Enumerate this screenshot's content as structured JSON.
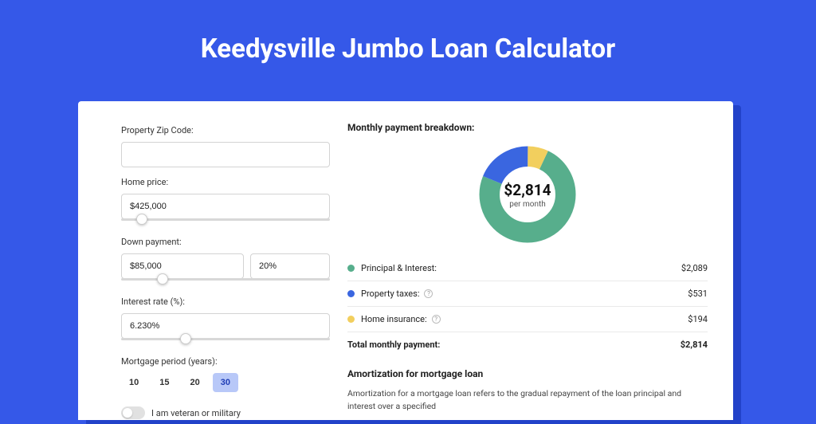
{
  "colors": {
    "page_bg": "#3558e8",
    "card_bg": "#ffffff",
    "shadow_bg": "#2242c9",
    "title_color": "#ffffff",
    "text": "#222222",
    "label": "#333333",
    "input_border": "#d3d3d3",
    "slider_track": "#d8d8d8",
    "period_active_bg": "#b8c8f8",
    "period_active_fg": "#1f3db5",
    "legend_border": "#eaeaea"
  },
  "title": "Keedysville Jumbo Loan Calculator",
  "form": {
    "zip_label": "Property Zip Code:",
    "zip_value": "",
    "home_price_label": "Home price:",
    "home_price_value": "$425,000",
    "home_price_slider_pct": 10,
    "down_payment_label": "Down payment:",
    "down_payment_value": "$85,000",
    "down_payment_pct_value": "20%",
    "down_payment_slider_pct": 20,
    "interest_label": "Interest rate (%):",
    "interest_value": "6.230%",
    "interest_slider_pct": 31,
    "period_label": "Mortgage period (years):",
    "periods": [
      "10",
      "15",
      "20",
      "30"
    ],
    "period_selected": "30",
    "veteran_label": "I am veteran or military",
    "veteran_on": false
  },
  "breakdown": {
    "title": "Monthly payment breakdown:",
    "donut": {
      "total_label": "$2,814",
      "sub_label": "per month",
      "slices": [
        {
          "name": "principal-interest",
          "value": 2089,
          "color": "#57ae8c"
        },
        {
          "name": "property-taxes",
          "value": 531,
          "color": "#3a66e0"
        },
        {
          "name": "home-insurance",
          "value": 194,
          "color": "#f2cf5e"
        }
      ]
    },
    "rows": [
      {
        "dot": "#57ae8c",
        "label": "Principal & Interest:",
        "info": false,
        "value": "$2,089"
      },
      {
        "dot": "#3a66e0",
        "label": "Property taxes:",
        "info": true,
        "value": "$531"
      },
      {
        "dot": "#f2cf5e",
        "label": "Home insurance:",
        "info": true,
        "value": "$194"
      }
    ],
    "total_label": "Total monthly payment:",
    "total_value": "$2,814"
  },
  "amortization": {
    "title": "Amortization for mortgage loan",
    "body": "Amortization for a mortgage loan refers to the gradual repayment of the loan principal and interest over a specified"
  }
}
